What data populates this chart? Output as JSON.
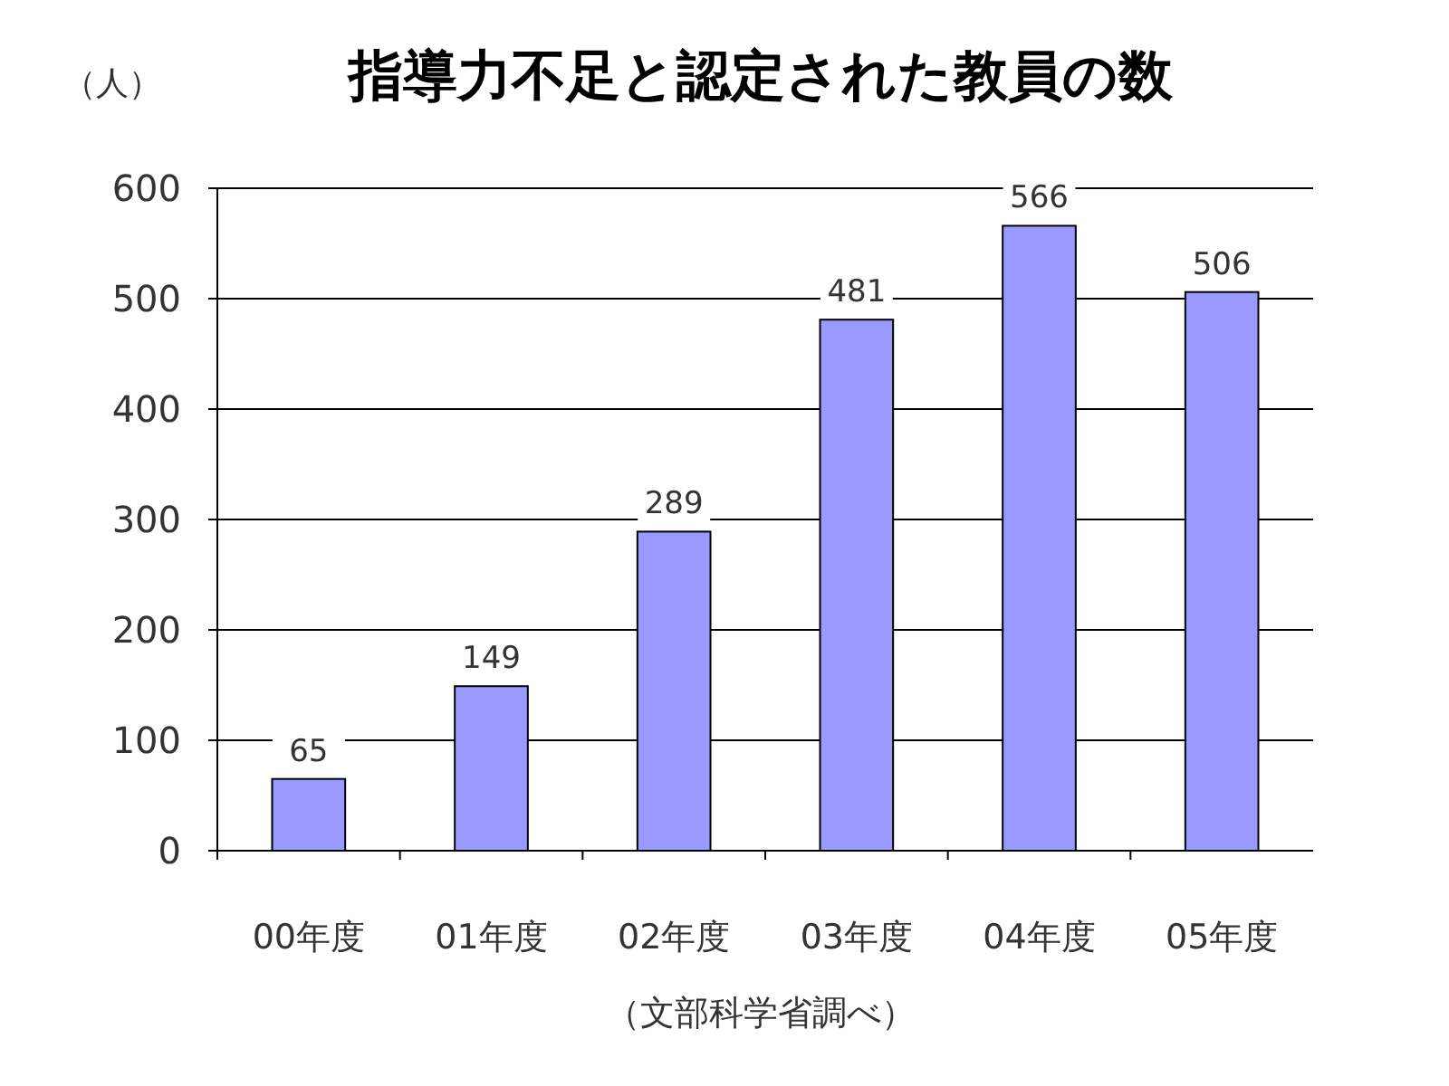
{
  "chart_data": {
    "type": "bar",
    "title": "指導力不足と認定された教員の数",
    "ylabel": "（人）",
    "xlabel": "（文部科学省調べ）",
    "categories": [
      "00年度",
      "01年度",
      "02年度",
      "03年度",
      "04年度",
      "05年度"
    ],
    "values": [
      65,
      149,
      289,
      481,
      566,
      506
    ],
    "color": "#9999ff",
    "ylim": [
      0,
      600
    ],
    "yticks": [
      0,
      100,
      200,
      300,
      400,
      500,
      600
    ],
    "grid": "y",
    "data_labels": true
  }
}
